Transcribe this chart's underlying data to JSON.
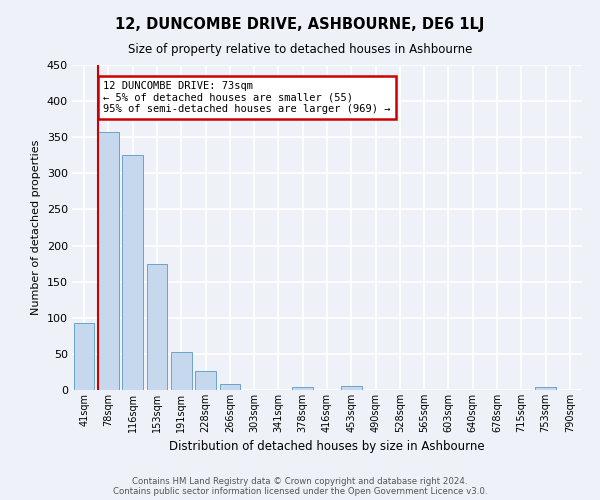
{
  "title": "12, DUNCOMBE DRIVE, ASHBOURNE, DE6 1LJ",
  "subtitle": "Size of property relative to detached houses in Ashbourne",
  "xlabel": "Distribution of detached houses by size in Ashbourne",
  "ylabel": "Number of detached properties",
  "bar_labels": [
    "41sqm",
    "78sqm",
    "116sqm",
    "153sqm",
    "191sqm",
    "228sqm",
    "266sqm",
    "303sqm",
    "341sqm",
    "378sqm",
    "416sqm",
    "453sqm",
    "490sqm",
    "528sqm",
    "565sqm",
    "603sqm",
    "640sqm",
    "678sqm",
    "715sqm",
    "753sqm",
    "790sqm"
  ],
  "bar_values": [
    93,
    357,
    325,
    174,
    52,
    26,
    9,
    0,
    0,
    4,
    0,
    5,
    0,
    0,
    0,
    0,
    0,
    0,
    0,
    4,
    0
  ],
  "bar_color": "#c5d8ed",
  "bar_edge_color": "#6ba3cb",
  "vline_color": "#cc0000",
  "annotation_title": "12 DUNCOMBE DRIVE: 73sqm",
  "annotation_line1": "← 5% of detached houses are smaller (55)",
  "annotation_line2": "95% of semi-detached houses are larger (969) →",
  "annotation_box_color": "#cc0000",
  "ylim": [
    0,
    450
  ],
  "yticks": [
    0,
    50,
    100,
    150,
    200,
    250,
    300,
    350,
    400,
    450
  ],
  "footer_line1": "Contains HM Land Registry data © Crown copyright and database right 2024.",
  "footer_line2": "Contains public sector information licensed under the Open Government Licence v3.0.",
  "bg_color": "#eef2f8",
  "grid_color": "#ffffff",
  "title_fontsize": 10.5,
  "subtitle_fontsize": 8.5
}
